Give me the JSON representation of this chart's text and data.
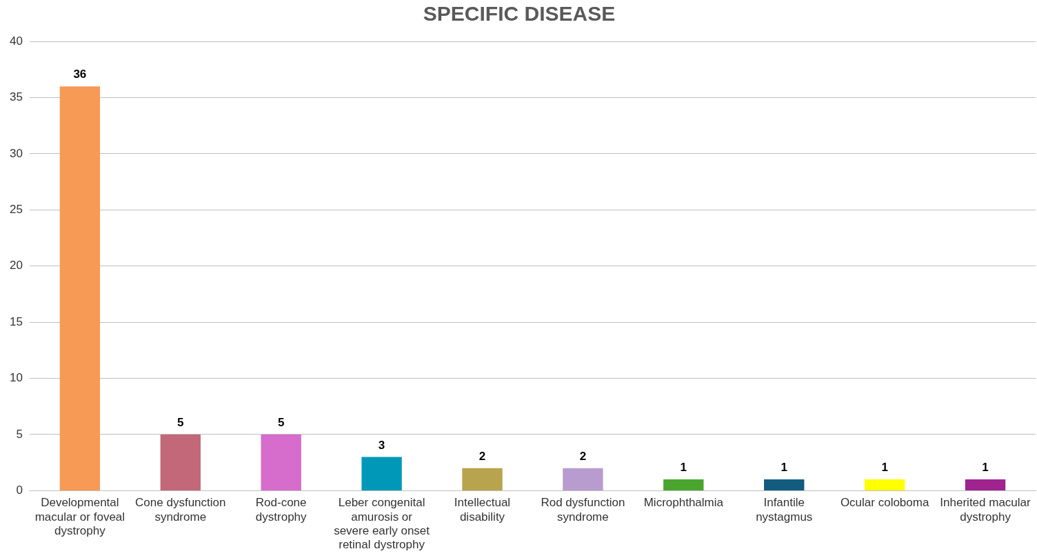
{
  "chart_data": {
    "type": "bar",
    "title": "SPECIFIC DISEASE",
    "categories": [
      "Developmental macular or foveal dystrophy",
      "Cone dysfunction syndrome",
      "Rod-cone dystrophy",
      "Leber congenital amurosis or severe early onset retinal dystrophy",
      "Intellectual disability",
      "Rod dysfunction syndrome",
      "Microphthalmia",
      "Infantile nystagmus",
      "Ocular coloboma",
      "Inherited macular dystrophy"
    ],
    "values": [
      36,
      5,
      5,
      3,
      2,
      2,
      1,
      1,
      1,
      1
    ],
    "colors": [
      "#f79a55",
      "#c36878",
      "#d66ccb",
      "#0098b9",
      "#b8a44e",
      "#b89ccf",
      "#4aa52e",
      "#135c80",
      "#ffff00",
      "#a0248f"
    ],
    "ylim": [
      0,
      40
    ],
    "yticks": [
      0,
      5,
      10,
      15,
      20,
      25,
      30,
      35,
      40
    ],
    "grid": "y",
    "data_labels": true
  }
}
